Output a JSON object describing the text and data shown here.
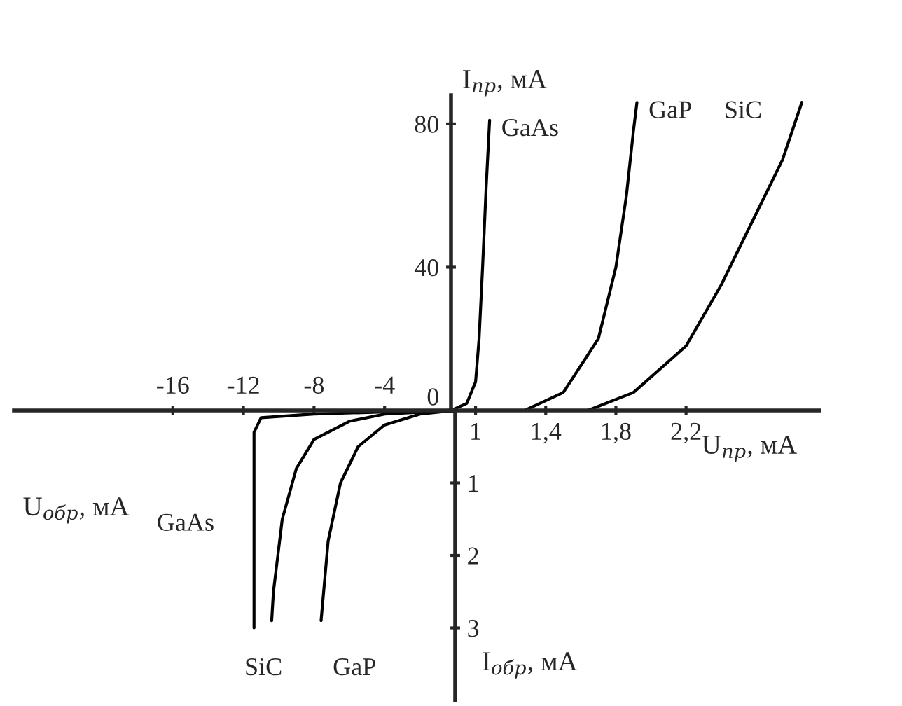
{
  "chart_data": [
    {
      "type": "line",
      "xlabel": "U$_{пр}$, мА",
      "ylabel": "I$_{пр}$, мА",
      "xlim": [
        0.86,
        2.96
      ],
      "ylim": [
        0,
        88
      ],
      "xticks": [
        {
          "value": 1,
          "label": "1"
        },
        {
          "value": 1.4,
          "label": "1,4"
        },
        {
          "value": 1.8,
          "label": "1,8"
        },
        {
          "value": 2.2,
          "label": "2,2"
        }
      ],
      "yticks": [
        0,
        40,
        80
      ],
      "grid": false,
      "legend": false,
      "series": [
        {
          "name": "GaAs",
          "color": "#000000",
          "x": [
            0.86,
            0.95,
            1.0,
            1.02,
            1.04,
            1.06,
            1.08
          ],
          "values": [
            0,
            2,
            8,
            20,
            40,
            62,
            81
          ]
        },
        {
          "name": "GaP",
          "color": "#000000",
          "x": [
            1.28,
            1.5,
            1.7,
            1.8,
            1.86,
            1.9,
            1.92
          ],
          "values": [
            0,
            5,
            20,
            40,
            60,
            78,
            86
          ]
        },
        {
          "name": "SiC",
          "color": "#000000",
          "x": [
            1.64,
            1.9,
            2.2,
            2.4,
            2.6,
            2.75,
            2.86
          ],
          "values": [
            0,
            5,
            18,
            35,
            55,
            70,
            86
          ]
        }
      ]
    },
    {
      "type": "line",
      "xlabel": "U$_{обр}$, мА",
      "ylabel": "I$_{обр}$, мА",
      "xlim": [
        -25,
        0
      ],
      "ylim": [
        4,
        0
      ],
      "xticks": [
        -16,
        -12,
        -8,
        -4
      ],
      "yticks": [
        1,
        2,
        3
      ],
      "grid": false,
      "legend": false,
      "series": [
        {
          "name": "GaAs",
          "color": "#000000",
          "x": [
            0,
            -4,
            -8,
            -11,
            -11.4,
            -11.4
          ],
          "values": [
            0,
            0.02,
            0.05,
            0.1,
            0.3,
            3
          ]
        },
        {
          "name": "SiC",
          "color": "#000000",
          "x": [
            0,
            -4,
            -6,
            -8,
            -9,
            -9.8,
            -10.3,
            -10.4
          ],
          "values": [
            0,
            0.05,
            0.15,
            0.4,
            0.8,
            1.5,
            2.5,
            2.9
          ]
        },
        {
          "name": "GaP",
          "color": "#000000",
          "x": [
            0,
            -2,
            -4,
            -5.5,
            -6.5,
            -7.2,
            -7.6
          ],
          "values": [
            0,
            0.05,
            0.2,
            0.5,
            1,
            1.8,
            2.9
          ]
        }
      ]
    }
  ]
}
